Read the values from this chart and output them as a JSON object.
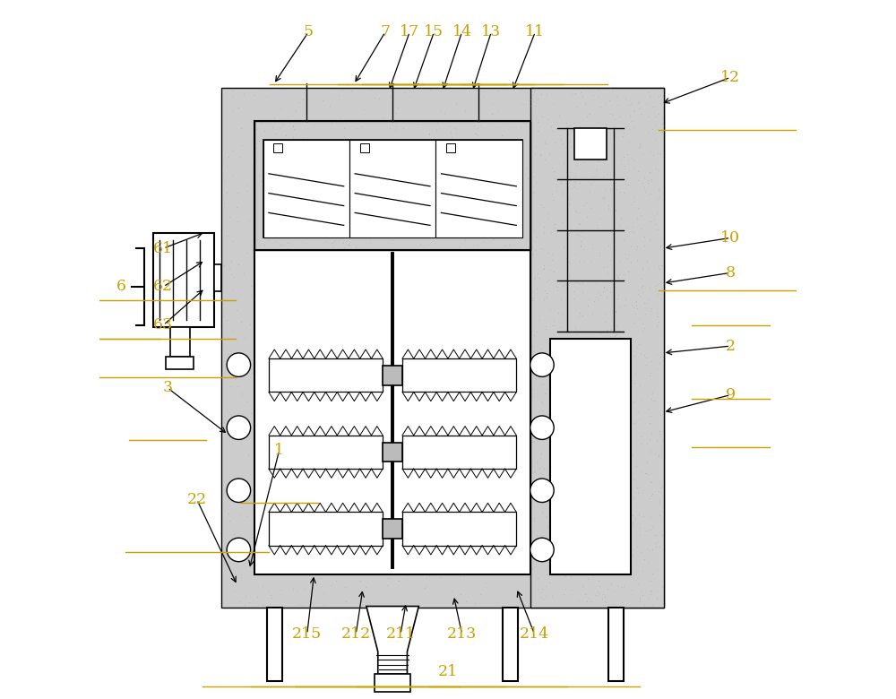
{
  "bg_color": "#ffffff",
  "line_color": "#000000",
  "label_color": "#c8a000",
  "fig_width": 10.0,
  "fig_height": 7.8
}
